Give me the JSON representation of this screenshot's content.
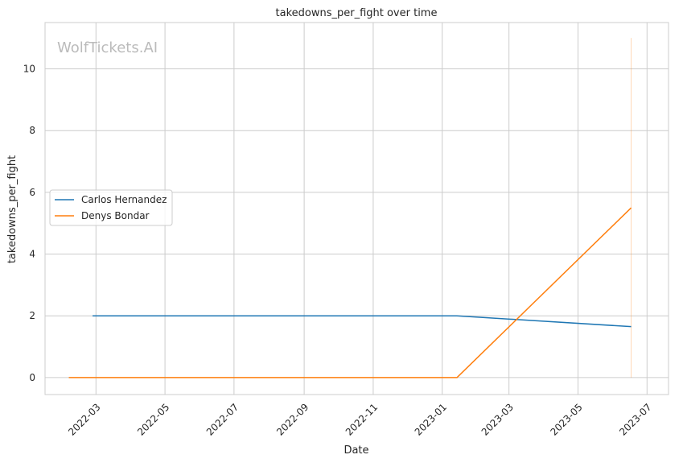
{
  "chart_data": {
    "type": "line",
    "title": "takedowns_per_fight over time",
    "xlabel": "Date",
    "ylabel": "takedowns_per_fight",
    "watermark": "WolfTickets.AI",
    "x_ticks": [
      "2022-03",
      "2022-05",
      "2022-07",
      "2022-09",
      "2022-11",
      "2023-01",
      "2023-03",
      "2023-05",
      "2023-07"
    ],
    "y_ticks": [
      "0",
      "2",
      "4",
      "6",
      "8",
      "10"
    ],
    "ylim": [
      -0.55,
      11.5
    ],
    "xlim": [
      "2022-01-15",
      "2023-07-20"
    ],
    "grid": true,
    "legend_position": "center-left",
    "series": [
      {
        "name": "Carlos Hernandez",
        "color": "#1f77b4",
        "points": [
          {
            "x": "2022-02-26",
            "y": 2.0
          },
          {
            "x": "2023-01-14",
            "y": 2.0
          },
          {
            "x": "2023-06-17",
            "y": 1.65
          }
        ]
      },
      {
        "name": "Denys Bondar",
        "color": "#ff7f0e",
        "points": [
          {
            "x": "2022-02-05",
            "y": 0.0
          },
          {
            "x": "2023-01-14",
            "y": 0.0
          },
          {
            "x": "2023-06-17",
            "y": 5.5
          }
        ]
      }
    ],
    "vertical_line": {
      "x": "2023-06-17",
      "y_from": 0,
      "y_to": 11.0,
      "color": "#ff7f0e"
    }
  },
  "colors": {
    "grid": "#cccccc",
    "axes_edge": "#cccccc",
    "watermark": "#bbbbbb"
  }
}
